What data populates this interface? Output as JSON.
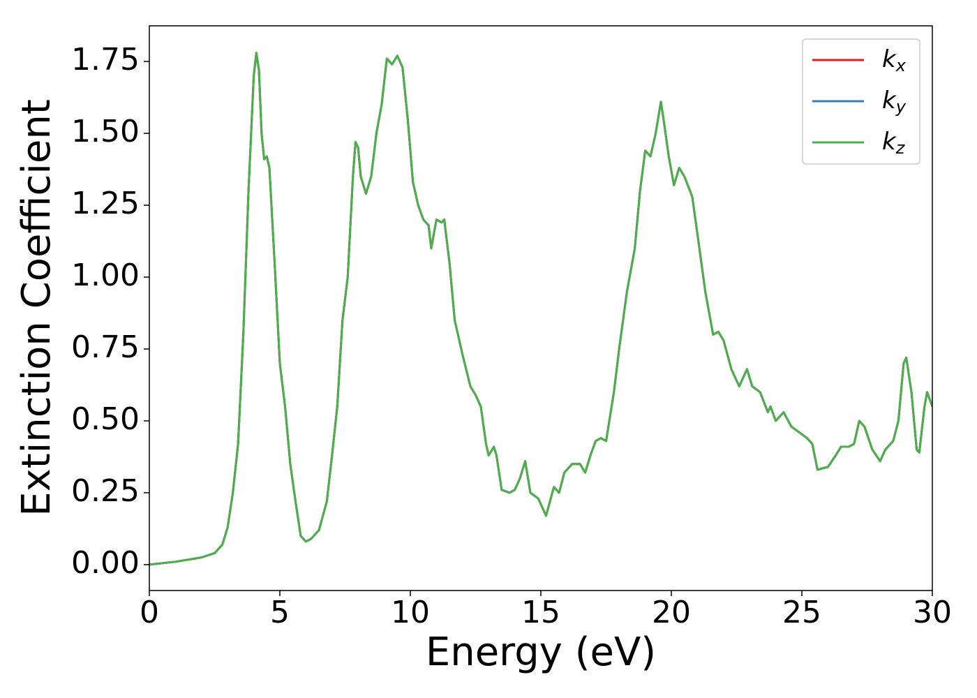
{
  "chart_data": {
    "type": "line",
    "xlabel": "Energy (eV)",
    "ylabel": "Extinction Coefficient",
    "x": [
      0,
      1,
      2,
      2.5,
      2.8,
      3.0,
      3.2,
      3.4,
      3.6,
      3.8,
      4.0,
      4.1,
      4.2,
      4.3,
      4.4,
      4.5,
      4.6,
      4.8,
      5.0,
      5.2,
      5.4,
      5.6,
      5.8,
      6.0,
      6.2,
      6.5,
      6.8,
      7.0,
      7.2,
      7.4,
      7.6,
      7.8,
      7.9,
      8.0,
      8.1,
      8.3,
      8.5,
      8.7,
      8.9,
      9.1,
      9.2,
      9.3,
      9.5,
      9.7,
      9.9,
      10.1,
      10.3,
      10.5,
      10.7,
      10.8,
      11.0,
      11.2,
      11.3,
      11.5,
      11.7,
      12.0,
      12.3,
      12.5,
      12.7,
      12.9,
      13.0,
      13.2,
      13.3,
      13.5,
      13.8,
      14.0,
      14.2,
      14.4,
      14.6,
      14.9,
      15.2,
      15.5,
      15.7,
      15.9,
      16.2,
      16.5,
      16.7,
      16.9,
      17.1,
      17.3,
      17.5,
      17.8,
      18.0,
      18.3,
      18.6,
      18.8,
      19.0,
      19.2,
      19.4,
      19.6,
      19.7,
      19.9,
      20.1,
      20.3,
      20.5,
      20.8,
      21.0,
      21.3,
      21.6,
      21.8,
      22.0,
      22.3,
      22.6,
      22.9,
      23.1,
      23.4,
      23.7,
      23.8,
      24.0,
      24.3,
      24.6,
      24.9,
      25.2,
      25.4,
      25.6,
      26.0,
      26.3,
      26.5,
      26.8,
      27.0,
      27.2,
      27.4,
      27.7,
      28.0,
      28.2,
      28.5,
      28.7,
      28.9,
      29.0,
      29.2,
      29.4,
      29.5,
      29.7,
      29.8,
      30.0
    ],
    "series": [
      {
        "name": "kx",
        "color": "#e41a1c",
        "values": [
          0,
          0.01,
          0.025,
          0.04,
          0.07,
          0.13,
          0.25,
          0.42,
          0.8,
          1.3,
          1.7,
          1.78,
          1.72,
          1.5,
          1.41,
          1.42,
          1.38,
          1.05,
          0.7,
          0.55,
          0.35,
          0.22,
          0.1,
          0.08,
          0.09,
          0.12,
          0.22,
          0.38,
          0.55,
          0.85,
          1.0,
          1.35,
          1.47,
          1.45,
          1.35,
          1.29,
          1.35,
          1.5,
          1.6,
          1.76,
          1.75,
          1.74,
          1.77,
          1.73,
          1.55,
          1.33,
          1.25,
          1.2,
          1.18,
          1.1,
          1.2,
          1.19,
          1.2,
          1.05,
          0.85,
          0.73,
          0.62,
          0.59,
          0.55,
          0.42,
          0.38,
          0.41,
          0.38,
          0.26,
          0.25,
          0.26,
          0.3,
          0.36,
          0.25,
          0.23,
          0.17,
          0.27,
          0.25,
          0.32,
          0.35,
          0.35,
          0.32,
          0.38,
          0.43,
          0.44,
          0.43,
          0.6,
          0.75,
          0.95,
          1.1,
          1.3,
          1.44,
          1.42,
          1.5,
          1.61,
          1.55,
          1.42,
          1.32,
          1.38,
          1.35,
          1.28,
          1.15,
          0.95,
          0.8,
          0.81,
          0.78,
          0.68,
          0.62,
          0.68,
          0.62,
          0.6,
          0.53,
          0.55,
          0.5,
          0.53,
          0.48,
          0.46,
          0.44,
          0.42,
          0.33,
          0.34,
          0.38,
          0.41,
          0.41,
          0.42,
          0.5,
          0.48,
          0.4,
          0.36,
          0.4,
          0.43,
          0.5,
          0.7,
          0.72,
          0.6,
          0.4,
          0.39,
          0.55,
          0.6,
          0.55
        ]
      },
      {
        "name": "ky",
        "color": "#377eb8",
        "values": [
          0,
          0.01,
          0.025,
          0.04,
          0.07,
          0.13,
          0.25,
          0.42,
          0.8,
          1.3,
          1.7,
          1.78,
          1.72,
          1.5,
          1.41,
          1.42,
          1.38,
          1.05,
          0.7,
          0.55,
          0.35,
          0.22,
          0.1,
          0.08,
          0.09,
          0.12,
          0.22,
          0.38,
          0.55,
          0.85,
          1.0,
          1.35,
          1.47,
          1.45,
          1.35,
          1.29,
          1.35,
          1.5,
          1.6,
          1.76,
          1.75,
          1.74,
          1.77,
          1.73,
          1.55,
          1.33,
          1.25,
          1.2,
          1.18,
          1.1,
          1.2,
          1.19,
          1.2,
          1.05,
          0.85,
          0.73,
          0.62,
          0.59,
          0.55,
          0.42,
          0.38,
          0.41,
          0.38,
          0.26,
          0.25,
          0.26,
          0.3,
          0.36,
          0.25,
          0.23,
          0.17,
          0.27,
          0.25,
          0.32,
          0.35,
          0.35,
          0.32,
          0.38,
          0.43,
          0.44,
          0.43,
          0.6,
          0.75,
          0.95,
          1.1,
          1.3,
          1.44,
          1.42,
          1.5,
          1.61,
          1.55,
          1.42,
          1.32,
          1.38,
          1.35,
          1.28,
          1.15,
          0.95,
          0.8,
          0.81,
          0.78,
          0.68,
          0.62,
          0.68,
          0.62,
          0.6,
          0.53,
          0.55,
          0.5,
          0.53,
          0.48,
          0.46,
          0.44,
          0.42,
          0.33,
          0.34,
          0.38,
          0.41,
          0.41,
          0.42,
          0.5,
          0.48,
          0.4,
          0.36,
          0.4,
          0.43,
          0.5,
          0.7,
          0.72,
          0.6,
          0.4,
          0.39,
          0.55,
          0.6,
          0.55
        ]
      },
      {
        "name": "kz",
        "color": "#4daf4a",
        "values": [
          0,
          0.01,
          0.025,
          0.04,
          0.07,
          0.13,
          0.25,
          0.42,
          0.8,
          1.3,
          1.7,
          1.78,
          1.72,
          1.5,
          1.41,
          1.42,
          1.38,
          1.05,
          0.7,
          0.55,
          0.35,
          0.22,
          0.1,
          0.08,
          0.09,
          0.12,
          0.22,
          0.38,
          0.55,
          0.85,
          1.0,
          1.35,
          1.47,
          1.45,
          1.35,
          1.29,
          1.35,
          1.5,
          1.6,
          1.76,
          1.75,
          1.74,
          1.77,
          1.73,
          1.55,
          1.33,
          1.25,
          1.2,
          1.18,
          1.1,
          1.2,
          1.19,
          1.2,
          1.05,
          0.85,
          0.73,
          0.62,
          0.59,
          0.55,
          0.42,
          0.38,
          0.41,
          0.38,
          0.26,
          0.25,
          0.26,
          0.3,
          0.36,
          0.25,
          0.23,
          0.17,
          0.27,
          0.25,
          0.32,
          0.35,
          0.35,
          0.32,
          0.38,
          0.43,
          0.44,
          0.43,
          0.6,
          0.75,
          0.95,
          1.1,
          1.3,
          1.44,
          1.42,
          1.5,
          1.61,
          1.55,
          1.42,
          1.32,
          1.38,
          1.35,
          1.28,
          1.15,
          0.95,
          0.8,
          0.81,
          0.78,
          0.68,
          0.62,
          0.68,
          0.62,
          0.6,
          0.53,
          0.55,
          0.5,
          0.53,
          0.48,
          0.46,
          0.44,
          0.42,
          0.33,
          0.34,
          0.38,
          0.41,
          0.41,
          0.42,
          0.5,
          0.48,
          0.4,
          0.36,
          0.4,
          0.43,
          0.5,
          0.7,
          0.72,
          0.6,
          0.4,
          0.39,
          0.55,
          0.6,
          0.55
        ]
      }
    ],
    "xlim": [
      0,
      30
    ],
    "xticks": [
      0,
      5,
      10,
      15,
      20,
      25,
      30
    ],
    "ylim": [
      -0.09,
      1.874
    ],
    "yticks": [
      {
        "value": 0,
        "label": "0.00"
      },
      {
        "value": 0.25,
        "label": "0.25"
      },
      {
        "value": 0.5,
        "label": "0.50"
      },
      {
        "value": 0.75,
        "label": "0.75"
      },
      {
        "value": 1,
        "label": "1.00"
      },
      {
        "value": 1.25,
        "label": "1.25"
      },
      {
        "value": 1.5,
        "label": "1.50"
      },
      {
        "value": 1.75,
        "label": "1.75"
      }
    ],
    "grid": false,
    "legend": "upper right"
  }
}
